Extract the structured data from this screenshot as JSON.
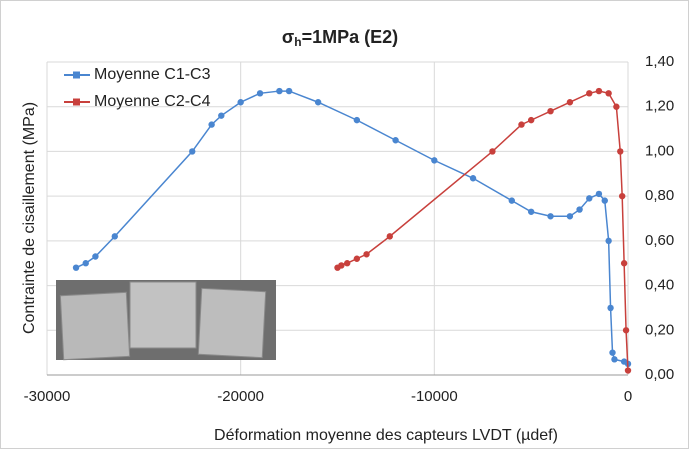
{
  "chart_data": {
    "type": "line",
    "title": {
      "symbol": "σ",
      "subscript": "h",
      "rest": "=1MPa (E2)"
    },
    "x_label": "Déformation moyenne des capteurs LVDT (µdef)",
    "y_label": "Contrainte de cisaillement (MPa)",
    "xlim": [
      -30000,
      0
    ],
    "xticks": [
      -30000,
      -20000,
      -10000,
      0
    ],
    "ylim": [
      0,
      1.4
    ],
    "yticks": [
      {
        "value": 0,
        "label": "0,00"
      },
      {
        "value": 0.2,
        "label": "0,20"
      },
      {
        "value": 0.4,
        "label": "0,40"
      },
      {
        "value": 0.6,
        "label": "0,60"
      },
      {
        "value": 0.8,
        "label": "0,80"
      },
      {
        "value": 1.0,
        "label": "1,00"
      },
      {
        "value": 1.2,
        "label": "1,20"
      },
      {
        "value": 1.4,
        "label": "1,40"
      }
    ],
    "grid": true,
    "legend": "top-left",
    "series": [
      {
        "name": "Moyenne C1-C3",
        "color": "#4a86d0",
        "x": [
          -28500,
          -28000,
          -27500,
          -26500,
          -22500,
          -21500,
          -21000,
          -20000,
          -19000,
          -18000,
          -17500,
          -16000,
          -14000,
          -12000,
          -10000,
          -8000,
          -6000,
          -5000,
          -4000,
          -3000,
          -2500,
          -2000,
          -1500,
          -1200,
          -1000,
          -900,
          -800,
          -700,
          -200,
          0
        ],
        "values": [
          0.48,
          0.5,
          0.53,
          0.62,
          1.0,
          1.12,
          1.16,
          1.22,
          1.26,
          1.27,
          1.27,
          1.22,
          1.14,
          1.05,
          0.96,
          0.88,
          0.78,
          0.73,
          0.71,
          0.71,
          0.74,
          0.79,
          0.81,
          0.78,
          0.6,
          0.3,
          0.1,
          0.07,
          0.06,
          0.05
        ]
      },
      {
        "name": "Moyenne C2-C4",
        "color": "#c8403c",
        "x": [
          -15000,
          -14800,
          -14500,
          -14000,
          -13500,
          -12300,
          -7000,
          -5500,
          -5000,
          -4000,
          -3000,
          -2000,
          -1500,
          -1000,
          -600,
          -400,
          -300,
          -200,
          -100,
          0
        ],
        "values": [
          0.48,
          0.49,
          0.5,
          0.52,
          0.54,
          0.62,
          1.0,
          1.12,
          1.14,
          1.18,
          1.22,
          1.26,
          1.27,
          1.26,
          1.2,
          1.0,
          0.8,
          0.5,
          0.2,
          0.02
        ]
      }
    ]
  }
}
